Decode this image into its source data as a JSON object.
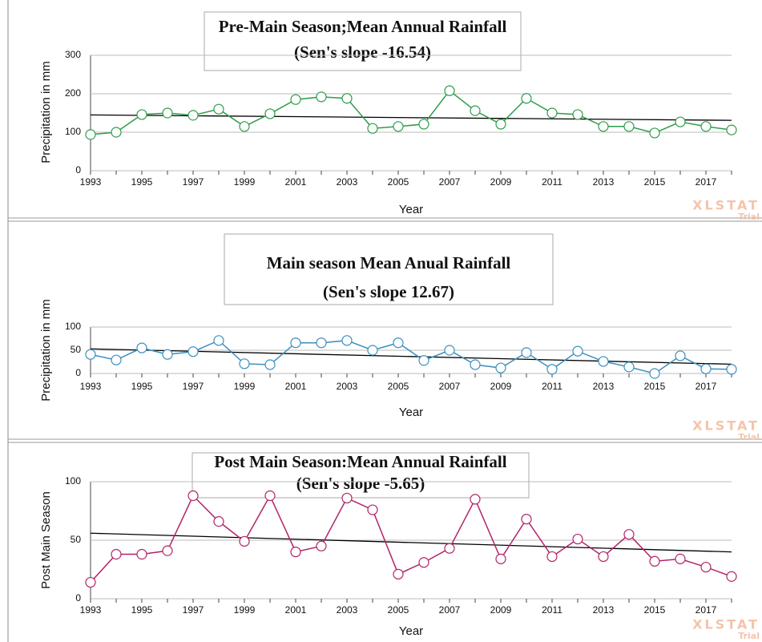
{
  "chart_data": [
    {
      "type": "line",
      "title": "Pre-Main Season;Mean Annual Rainfall",
      "subtitle": "(Sen's slope -16.54)",
      "x_label": "Year",
      "y_label": "Precipitation in mm",
      "x": [
        1993,
        1994,
        1995,
        1996,
        1997,
        1998,
        1999,
        2000,
        2001,
        2002,
        2003,
        2004,
        2005,
        2006,
        2007,
        2008,
        2009,
        2010,
        2011,
        2012,
        2013,
        2014,
        2015,
        2016,
        2017,
        2018
      ],
      "series": [
        {
          "color": "#2e9c4a",
          "values": [
            94,
            100,
            146,
            150,
            144,
            160,
            115,
            148,
            185,
            192,
            188,
            110,
            115,
            121,
            208,
            156,
            121,
            188,
            150,
            146,
            115,
            115,
            98,
            127,
            115,
            106
          ]
        }
      ],
      "trend": {
        "color": "#000000",
        "x": [
          1993,
          2018
        ],
        "values": [
          145,
          131
        ]
      },
      "xlim": [
        1993,
        2018
      ],
      "xticks": [
        1993,
        1995,
        1997,
        1999,
        2001,
        2003,
        2005,
        2007,
        2009,
        2011,
        2013,
        2015,
        2017
      ],
      "ylim": [
        0,
        300
      ],
      "yticks": [
        0,
        100,
        200,
        300
      ],
      "watermark": "XLSTAT",
      "watermark_sub": "Trial"
    },
    {
      "type": "line",
      "title": "Main season Mean Anual Rainfall",
      "subtitle": "(Sen's slope 12.67)",
      "x_label": "Year",
      "y_label": "Precipitation in mm",
      "x": [
        1993,
        1994,
        1995,
        1996,
        1997,
        1998,
        1999,
        2000,
        2001,
        2002,
        2003,
        2004,
        2005,
        2006,
        2007,
        2008,
        2009,
        2010,
        2011,
        2012,
        2013,
        2014,
        2015,
        2016,
        2017,
        2018
      ],
      "series": [
        {
          "color": "#3a8fc0",
          "values": [
            41,
            29,
            55,
            41,
            47,
            71,
            21,
            19,
            66,
            66,
            71,
            50,
            66,
            28,
            50,
            19,
            12,
            45,
            9,
            48,
            26,
            14,
            0,
            38,
            10,
            9
          ]
        }
      ],
      "trend": {
        "color": "#000000",
        "x": [
          1993,
          2018
        ],
        "values": [
          53,
          20
        ]
      },
      "xlim": [
        1993,
        2018
      ],
      "xticks": [
        1993,
        1995,
        1997,
        1999,
        2001,
        2003,
        2005,
        2007,
        2009,
        2011,
        2013,
        2015,
        2017
      ],
      "ylim": [
        0,
        100
      ],
      "yticks": [
        0,
        50,
        100
      ],
      "watermark": "XLSTAT",
      "watermark_sub": "Trial"
    },
    {
      "type": "line",
      "title": "Post Main Season:Mean Annual Rainfall",
      "subtitle": "(Sen's slope -5.65)",
      "x_label": "Year",
      "y_label": "Post Main Season",
      "x": [
        1993,
        1994,
        1995,
        1996,
        1997,
        1998,
        1999,
        2000,
        2001,
        2002,
        2003,
        2004,
        2005,
        2006,
        2007,
        2008,
        2009,
        2010,
        2011,
        2012,
        2013,
        2014,
        2015,
        2016,
        2017,
        2018
      ],
      "series": [
        {
          "color": "#b0246a",
          "values": [
            14,
            38,
            38,
            41,
            88,
            66,
            49,
            88,
            40,
            45,
            86,
            76,
            21,
            31,
            43,
            85,
            34,
            68,
            36,
            51,
            36,
            55,
            32,
            34,
            27,
            19
          ]
        }
      ],
      "trend": {
        "color": "#000000",
        "x": [
          1993,
          2018
        ],
        "values": [
          56,
          40
        ]
      },
      "xlim": [
        1993,
        2018
      ],
      "xticks": [
        1993,
        1995,
        1997,
        1999,
        2001,
        2003,
        2005,
        2007,
        2009,
        2011,
        2013,
        2015,
        2017
      ],
      "ylim": [
        0,
        100
      ],
      "yticks": [
        0,
        50,
        100
      ],
      "watermark": "XLSTAT",
      "watermark_sub": "Trial"
    }
  ]
}
